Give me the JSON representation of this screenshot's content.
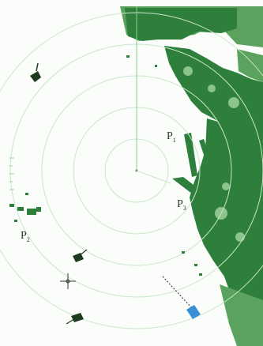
{
  "radar": {
    "colors": {
      "background": "#fbfdfb",
      "range_ring": "#c9e6c9",
      "heading_line": "#8ccc8c",
      "land": "#2f7f3c",
      "land_light": "#5aa25e",
      "target": "#1d3a1d",
      "own_vessel": "#3a8fd6"
    },
    "icons": {
      "cursor": "crosshair-icon",
      "vessel": "vessel-icon"
    }
  },
  "points": [
    {
      "letter": "P",
      "index": "1"
    },
    {
      "letter": "P",
      "index": "2"
    },
    {
      "letter": "P",
      "index": "3"
    }
  ]
}
